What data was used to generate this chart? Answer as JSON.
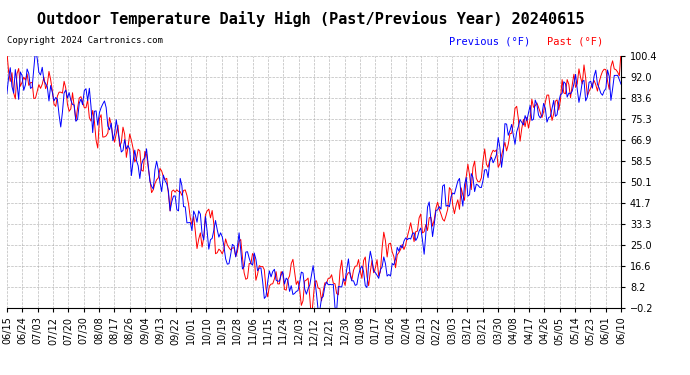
{
  "title": "Outdoor Temperature Daily High (Past/Previous Year) 20240615",
  "copyright": "Copyright 2024 Cartronics.com",
  "legend_previous": "Previous (°F)",
  "legend_past": "Past (°F)",
  "yticks": [
    100.4,
    92.0,
    83.6,
    75.3,
    66.9,
    58.5,
    50.1,
    41.7,
    33.3,
    25.0,
    16.6,
    8.2,
    -0.2
  ],
  "ymin": -0.2,
  "ymax": 100.4,
  "background_color": "#ffffff",
  "grid_color": "#aaaaaa",
  "line_previous_color": "#0000ff",
  "line_past_color": "#ff0000",
  "line_past_black_color": "#000000",
  "title_fontsize": 11,
  "tick_fontsize": 7,
  "copyright_fontsize": 6.5,
  "legend_fontsize": 7.5,
  "xtick_labels": [
    "06/15",
    "06/24",
    "07/03",
    "07/12",
    "07/20",
    "07/30",
    "08/08",
    "08/17",
    "08/26",
    "09/04",
    "09/13",
    "09/22",
    "10/01",
    "10/10",
    "10/19",
    "10/28",
    "11/06",
    "11/15",
    "11/24",
    "12/03",
    "12/12",
    "12/21",
    "12/30",
    "01/08",
    "01/17",
    "01/26",
    "02/04",
    "02/13",
    "02/22",
    "03/03",
    "03/12",
    "03/21",
    "03/30",
    "04/08",
    "04/17",
    "04/26",
    "05/05",
    "05/14",
    "05/23",
    "06/01",
    "06/10"
  ]
}
